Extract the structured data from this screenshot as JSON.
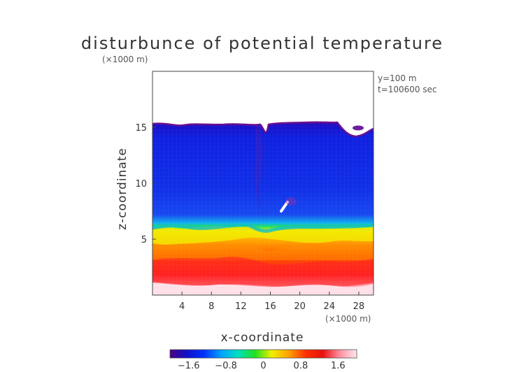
{
  "chart_data": {
    "type": "heatmap",
    "title": "disturbunce of potential temperature",
    "unit_label_y": "(×1000 m)",
    "unit_label_x": "(×1000 m)",
    "xlabel": "x-coordinate",
    "ylabel": "z-coordinate",
    "annotations": [
      "y=100 m",
      "t=100600 sec"
    ],
    "xlim": [
      0,
      30
    ],
    "ylim": [
      0,
      20
    ],
    "x_ticks": [
      4,
      8,
      12,
      16,
      20,
      24,
      28
    ],
    "y_ticks": [
      5,
      10,
      15
    ],
    "colorbar": {
      "range": [
        -2,
        2
      ],
      "ticks": [
        "−1.6",
        "−0.8",
        "0",
        "0.8",
        "1.6"
      ],
      "tick_values": [
        -1.6,
        -0.8,
        0,
        0.8,
        1.6
      ],
      "colors": [
        "#4b0082",
        "#1010c8",
        "#0030ff",
        "#00a0ff",
        "#00e0c0",
        "#20e020",
        "#f0f000",
        "#ffa000",
        "#ff3000",
        "#e81010",
        "#ff90a0",
        "#ffe8ec"
      ]
    },
    "field_description": {
      "top_boundary_height_approx": 15.6,
      "inversion_height_approx": 6.0
    }
  }
}
